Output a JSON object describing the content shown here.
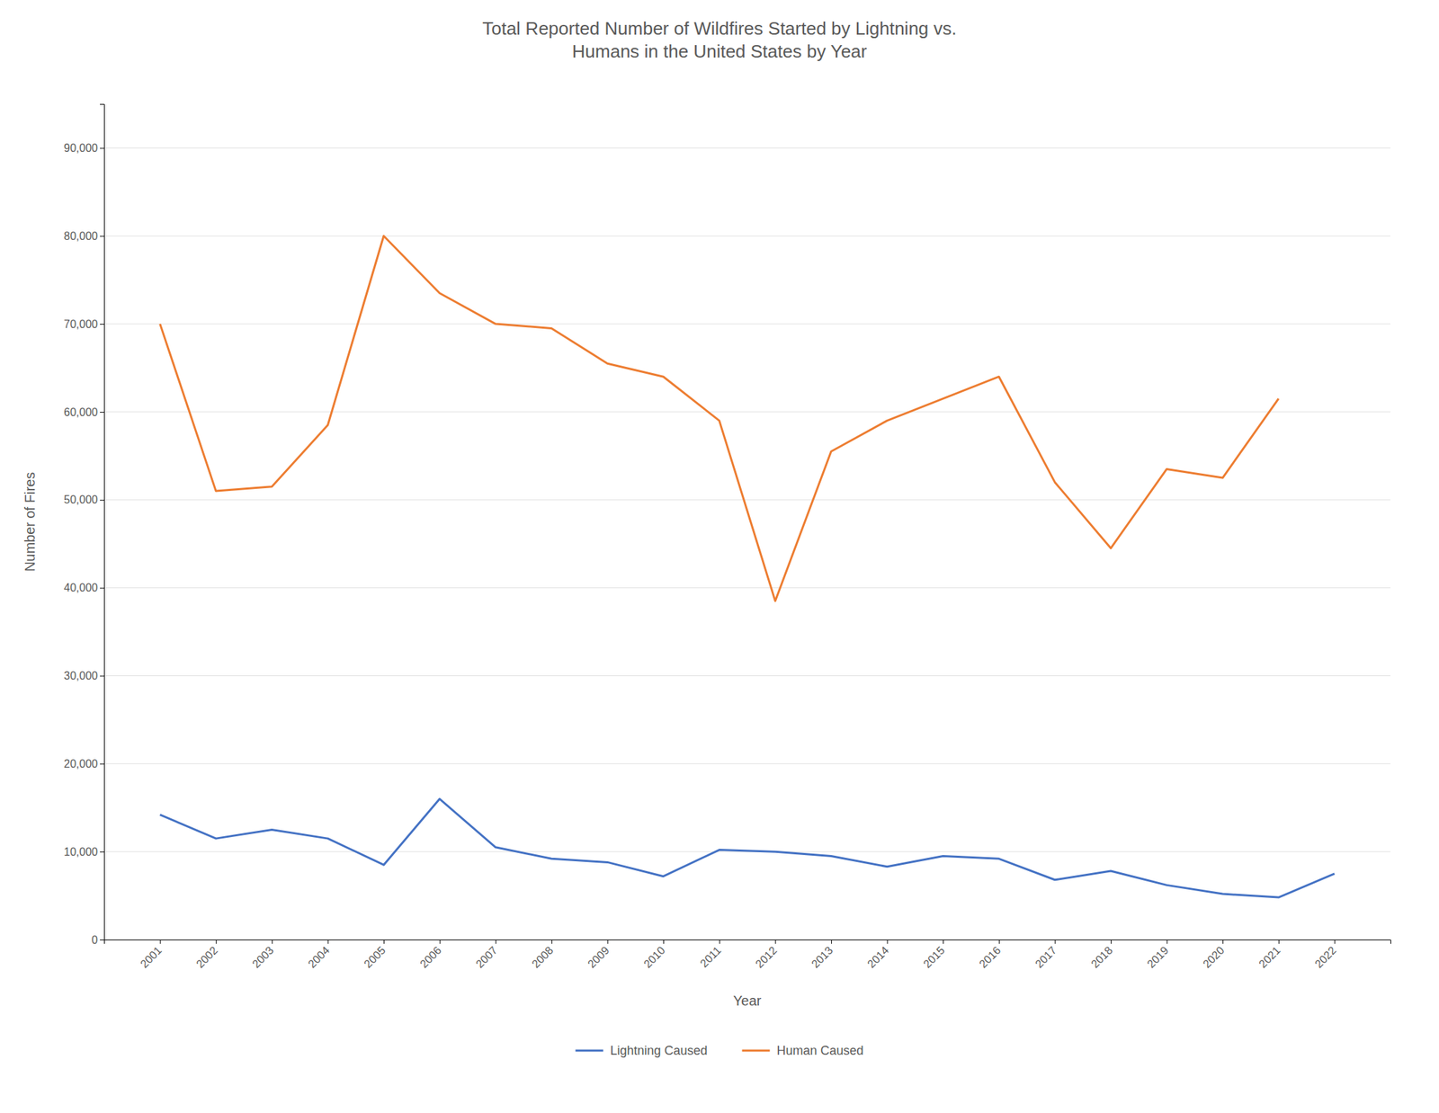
{
  "chart_data": {
    "type": "line",
    "title": "Total Reported Number of Wildfires Started by Lightning vs.\nHumans in the United States by Year",
    "x_label": "Year",
    "y_label": "Number of Fires",
    "x": [
      2001,
      2002,
      2003,
      2004,
      2005,
      2006,
      2007,
      2008,
      2009,
      2010,
      2011,
      2012,
      2013,
      2014,
      2015,
      2016,
      2017,
      2018,
      2019,
      2020,
      2021,
      2022
    ],
    "series": [
      {
        "name": "Lightning Caused",
        "color": "#4472C4",
        "values": [
          14200,
          11500,
          12500,
          11500,
          8500,
          16000,
          10500,
          9200,
          8800,
          7200,
          10200,
          10000,
          9500,
          8300,
          9500,
          9200,
          6800,
          7800,
          6200,
          5200,
          4800,
          7500
        ]
      },
      {
        "name": "Human Caused",
        "color": "#ED7D31",
        "values": [
          70000,
          51000,
          51500,
          58500,
          80000,
          73500,
          70000,
          69500,
          65500,
          64000,
          59000,
          38500,
          55500,
          59000,
          61500,
          64000,
          52000,
          44500,
          53500,
          52500,
          61500,
          null
        ]
      }
    ],
    "xlim": [
      2000,
      2023
    ],
    "xticks": [
      2001,
      2002,
      2003,
      2004,
      2005,
      2006,
      2007,
      2008,
      2009,
      2010,
      2011,
      2012,
      2013,
      2014,
      2015,
      2016,
      2017,
      2018,
      2019,
      2020,
      2021,
      2022
    ],
    "ylim": [
      0,
      95000
    ],
    "yticks": [
      0,
      {
        "value": 10000,
        "label": "10,000"
      },
      {
        "value": 20000,
        "label": "20,000"
      },
      {
        "value": 30000,
        "label": "30,000"
      },
      {
        "value": 40000,
        "label": "40,000"
      },
      {
        "value": 50000,
        "label": "50,000"
      },
      {
        "value": 60000,
        "label": "60,000"
      },
      {
        "value": 70000,
        "label": "70,000"
      },
      {
        "value": 80000,
        "label": "80,000"
      },
      {
        "value": 90000,
        "label": "90,000"
      }
    ],
    "grid": true,
    "legend": "bottom"
  }
}
